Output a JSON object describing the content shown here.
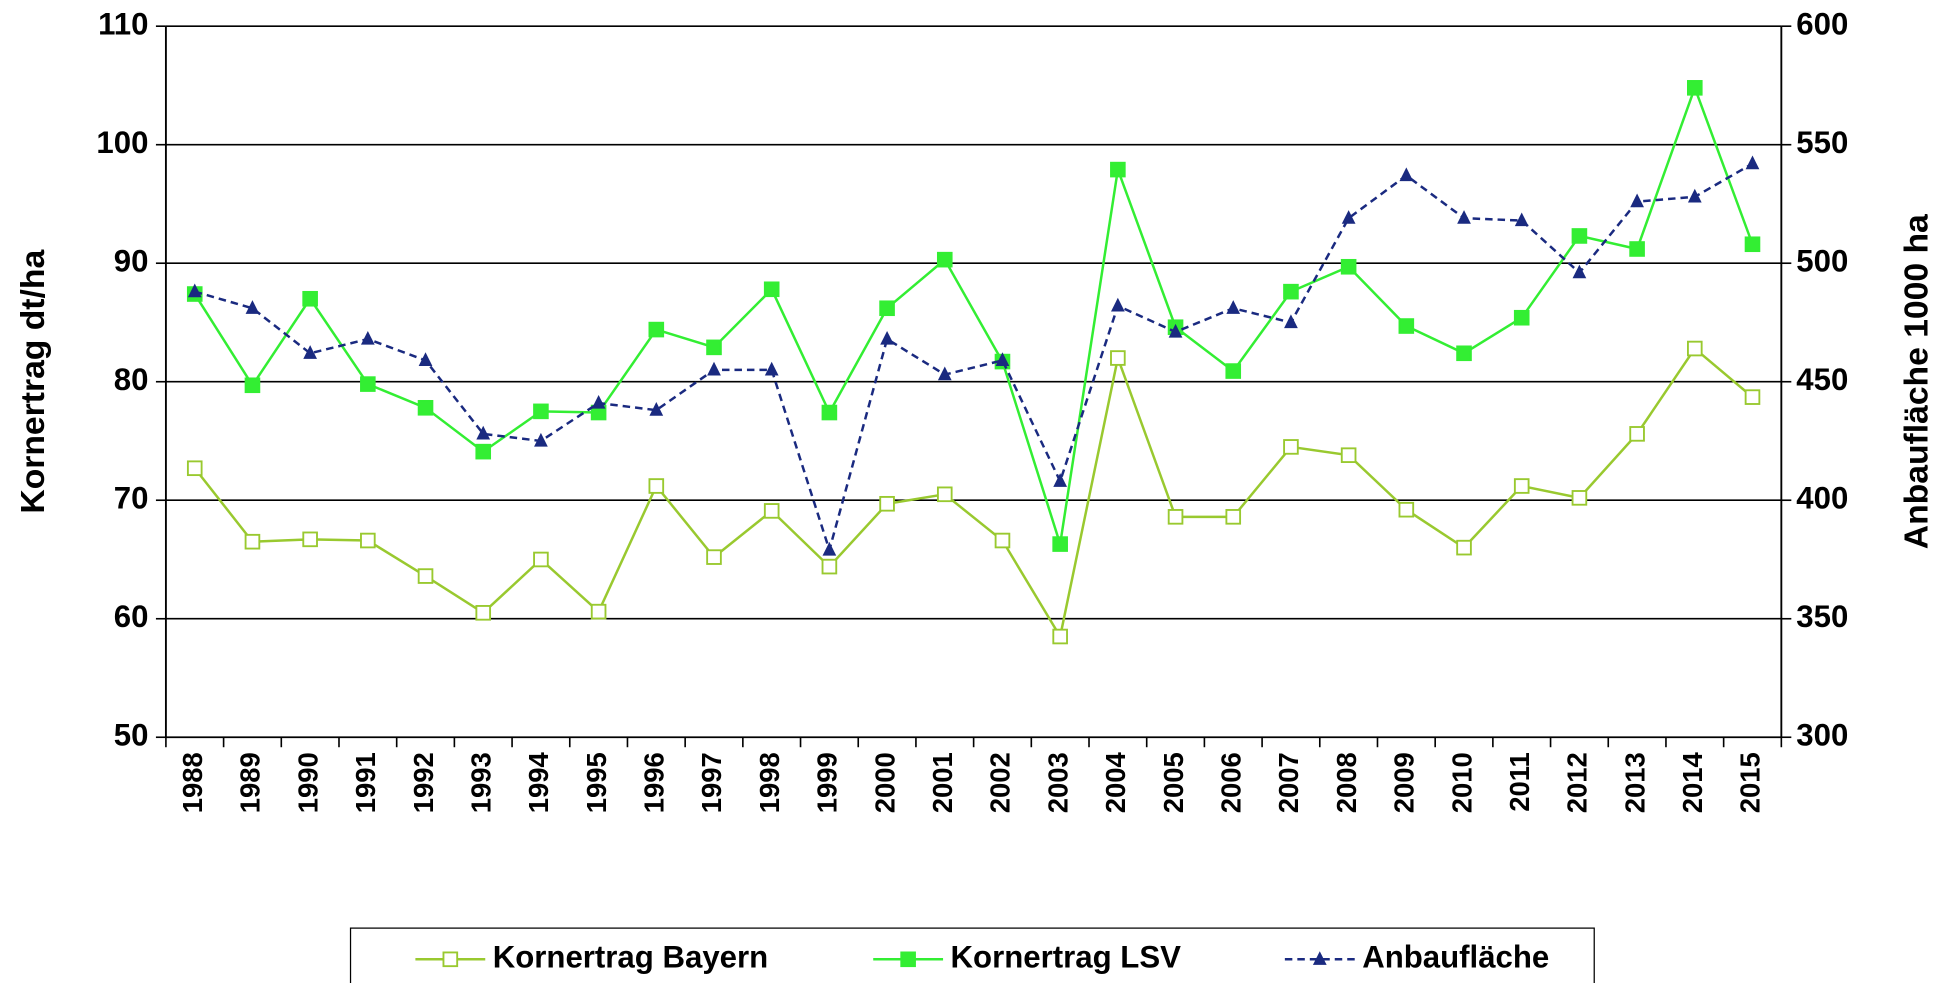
{
  "chart_data": {
    "type": "line",
    "ylabel": "Kornertrag  dt/ha",
    "y2label": "Anbaufläche 1000 ha",
    "categories": [
      "1988",
      "1989",
      "1990",
      "1991",
      "1992",
      "1993",
      "1994",
      "1995",
      "1996",
      "1997",
      "1998",
      "1999",
      "2000",
      "2001",
      "2002",
      "2003",
      "2004",
      "2005",
      "2006",
      "2007",
      "2008",
      "2009",
      "2010",
      "2011",
      "2012",
      "2013",
      "2014",
      "2015"
    ],
    "ylim": [
      50,
      110
    ],
    "yticks": [
      50,
      60,
      70,
      80,
      90,
      100,
      110
    ],
    "y2lim": [
      300,
      600
    ],
    "y2ticks": [
      300,
      350,
      400,
      450,
      500,
      550,
      600
    ],
    "grid": true,
    "legend": "bottom",
    "series": [
      {
        "name": "Kornertrag Bayern",
        "color": "#99c92f",
        "marker": "open-square",
        "values": [
          72.7,
          66.5,
          66.7,
          66.6,
          63.6,
          60.5,
          65.0,
          60.6,
          71.2,
          65.2,
          69.1,
          64.4,
          69.7,
          70.5,
          66.6,
          58.5,
          82.0,
          68.6,
          68.6,
          74.5,
          73.8,
          69.2,
          66.0,
          71.2,
          70.2,
          75.6,
          82.8,
          78.7
        ]
      },
      {
        "name": "Kornertrag LSV",
        "color": "#33ee33",
        "marker": "square",
        "values": [
          87.4,
          79.7,
          87.0,
          79.8,
          77.8,
          74.1,
          77.5,
          77.4,
          84.4,
          82.9,
          87.8,
          77.4,
          86.2,
          90.3,
          81.7,
          66.3,
          97.9,
          84.6,
          80.9,
          87.6,
          89.7,
          84.7,
          82.4,
          85.4,
          92.3,
          91.2,
          104.8,
          91.6
        ]
      },
      {
        "name": "Anbaufläche",
        "color": "#1a2a80",
        "marker": "triangle",
        "dash": true,
        "axis": "y2",
        "values": [
          488,
          481,
          462,
          468,
          459,
          428,
          425,
          441,
          438,
          455,
          455,
          379,
          468,
          453,
          459,
          408,
          482,
          471,
          481,
          475,
          519,
          537,
          519,
          518,
          496,
          526,
          528,
          542
        ]
      }
    ]
  }
}
